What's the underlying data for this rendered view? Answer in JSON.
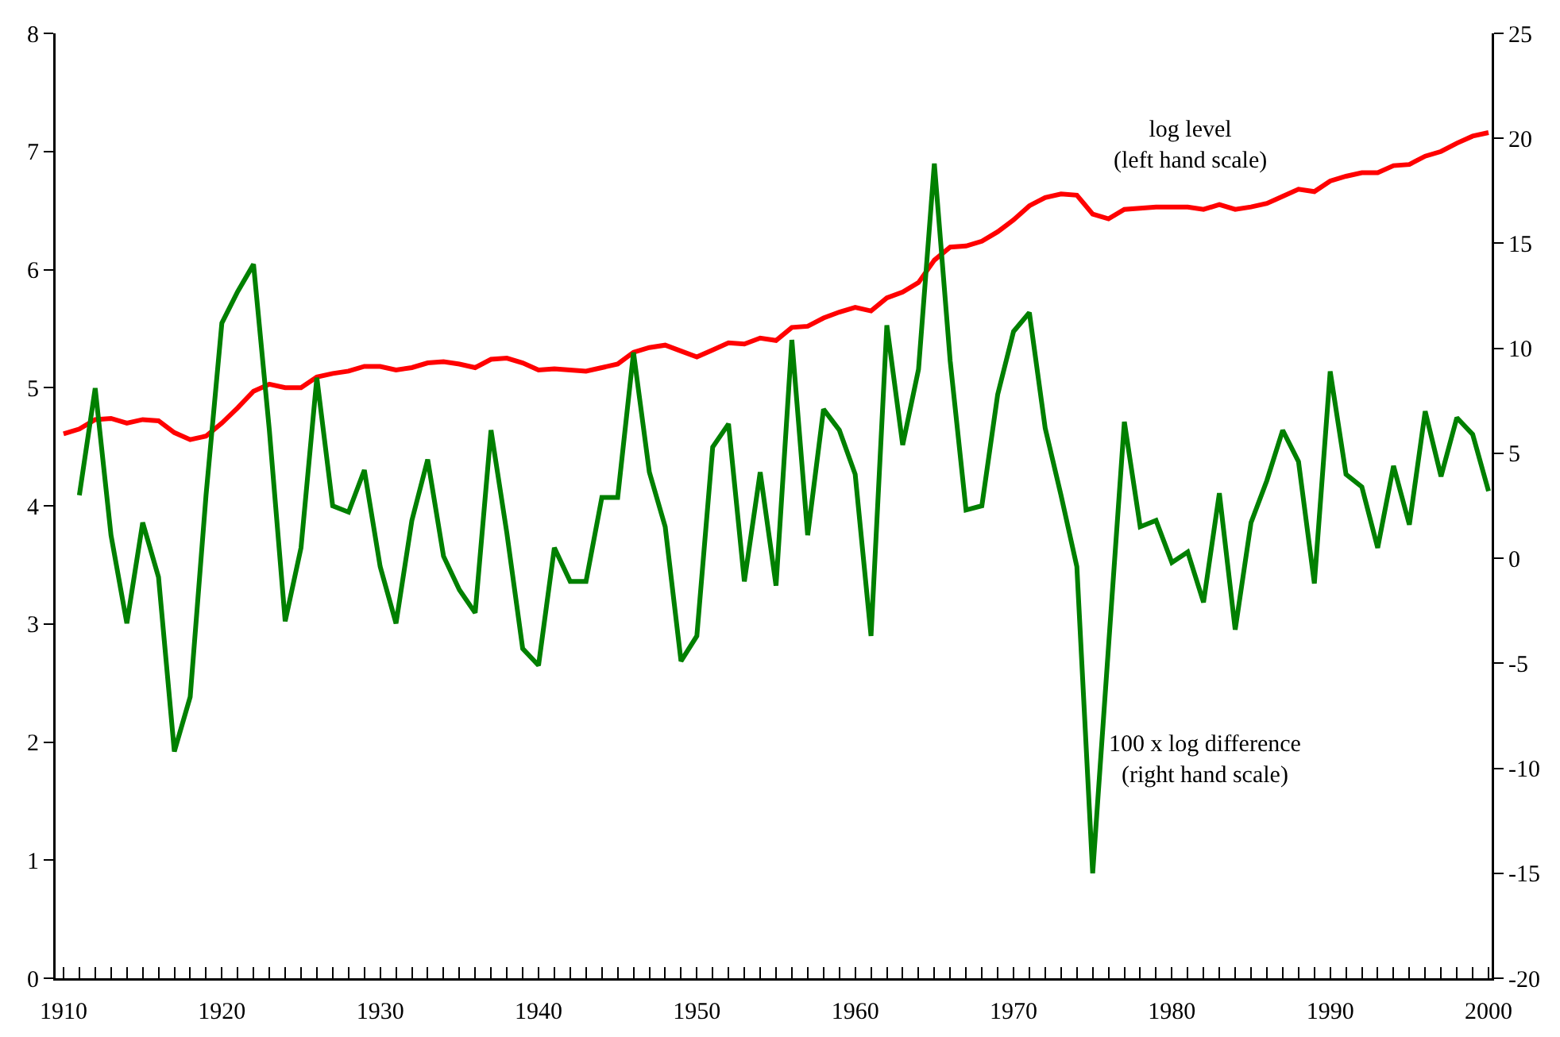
{
  "chart_data": {
    "type": "line",
    "x": [
      1910,
      1911,
      1912,
      1913,
      1914,
      1915,
      1916,
      1917,
      1918,
      1919,
      1920,
      1921,
      1922,
      1923,
      1924,
      1925,
      1926,
      1927,
      1928,
      1929,
      1930,
      1931,
      1932,
      1933,
      1934,
      1935,
      1936,
      1937,
      1938,
      1939,
      1940,
      1941,
      1942,
      1943,
      1944,
      1945,
      1946,
      1947,
      1948,
      1949,
      1950,
      1951,
      1952,
      1953,
      1954,
      1955,
      1956,
      1957,
      1958,
      1959,
      1960,
      1961,
      1962,
      1963,
      1964,
      1965,
      1966,
      1967,
      1968,
      1969,
      1970,
      1971,
      1972,
      1973,
      1974,
      1975,
      1976,
      1977,
      1978,
      1979,
      1980,
      1981,
      1982,
      1983,
      1984,
      1985,
      1986,
      1987,
      1988,
      1989,
      1990,
      1991,
      1992,
      1993,
      1994,
      1995,
      1996,
      1997,
      1998,
      1999,
      2000
    ],
    "series": [
      {
        "color": "#ff0000",
        "values": [
          4.61,
          4.65,
          4.73,
          4.74,
          4.7,
          4.73,
          4.72,
          4.62,
          4.56,
          4.59,
          4.7,
          4.83,
          4.97,
          5.03,
          5.0,
          5.0,
          5.09,
          5.12,
          5.14,
          5.18,
          5.18,
          5.15,
          5.17,
          5.21,
          5.22,
          5.2,
          5.17,
          5.24,
          5.25,
          5.21,
          5.15,
          5.16,
          5.15,
          5.14,
          5.17,
          5.2,
          5.3,
          5.34,
          5.36,
          5.31,
          5.26,
          5.32,
          5.38,
          5.37,
          5.42,
          5.4,
          5.51,
          5.52,
          5.59,
          5.64,
          5.68,
          5.65,
          5.76,
          5.81,
          5.89,
          6.08,
          6.19,
          6.2,
          6.24,
          6.32,
          6.42,
          6.54,
          6.61,
          6.64,
          6.63,
          6.47,
          6.43,
          6.51,
          6.52,
          6.53,
          6.53,
          6.53,
          6.51,
          6.55,
          6.51,
          6.53,
          6.56,
          6.62,
          6.68,
          6.66,
          6.75,
          6.79,
          6.82,
          6.82,
          6.88,
          6.89,
          6.96,
          7.0,
          7.07,
          7.13,
          7.16
        ]
      },
      {
        "color": "#008000",
        "axis": "y2",
        "values": [
          null,
          3.0,
          8.1,
          1.1,
          -3.1,
          1.7,
          -0.9,
          -9.2,
          -6.6,
          3.0,
          11.2,
          12.7,
          14.0,
          6.1,
          -3.0,
          0.5,
          8.6,
          2.5,
          2.2,
          4.2,
          -0.4,
          -3.1,
          1.8,
          4.7,
          0.1,
          -1.5,
          -2.6,
          6.1,
          1.2,
          -4.3,
          -5.1,
          0.5,
          -1.1,
          -1.1,
          2.9,
          2.9,
          9.8,
          4.1,
          1.5,
          -4.9,
          -3.7,
          5.3,
          6.4,
          -1.1,
          4.1,
          -1.3,
          10.4,
          1.1,
          7.1,
          6.1,
          4.0,
          -3.7,
          11.1,
          5.4,
          9.0,
          18.8,
          9.4,
          2.3,
          2.5,
          7.8,
          10.8,
          11.7,
          6.2,
          3.0,
          -0.4,
          -15.0,
          -4.2,
          6.5,
          1.5,
          1.8,
          -0.2,
          0.3,
          -2.1,
          3.1,
          -3.4,
          1.7,
          3.7,
          6.1,
          4.6,
          -1.2,
          8.9,
          4.0,
          3.4,
          0.5,
          4.4,
          1.6,
          7.0,
          3.9,
          6.7,
          5.9,
          3.2
        ]
      }
    ],
    "xlim": [
      1909.5,
      2000.2
    ],
    "xticks": [
      1910,
      {
        "value": 1911,
        "label": null
      },
      {
        "value": 1912,
        "label": null
      },
      {
        "value": 1913,
        "label": null
      },
      {
        "value": 1914,
        "label": null
      },
      {
        "value": 1915,
        "label": null
      },
      {
        "value": 1916,
        "label": null
      },
      {
        "value": 1917,
        "label": null
      },
      {
        "value": 1918,
        "label": null
      },
      {
        "value": 1919,
        "label": null
      },
      1920,
      {
        "value": 1921,
        "label": null
      },
      {
        "value": 1922,
        "label": null
      },
      {
        "value": 1923,
        "label": null
      },
      {
        "value": 1924,
        "label": null
      },
      {
        "value": 1925,
        "label": null
      },
      {
        "value": 1926,
        "label": null
      },
      {
        "value": 1927,
        "label": null
      },
      {
        "value": 1928,
        "label": null
      },
      {
        "value": 1929,
        "label": null
      },
      1930,
      {
        "value": 1931,
        "label": null
      },
      {
        "value": 1932,
        "label": null
      },
      {
        "value": 1933,
        "label": null
      },
      {
        "value": 1934,
        "label": null
      },
      {
        "value": 1935,
        "label": null
      },
      {
        "value": 1936,
        "label": null
      },
      {
        "value": 1937,
        "label": null
      },
      {
        "value": 1938,
        "label": null
      },
      {
        "value": 1939,
        "label": null
      },
      1940,
      {
        "value": 1941,
        "label": null
      },
      {
        "value": 1942,
        "label": null
      },
      {
        "value": 1943,
        "label": null
      },
      {
        "value": 1944,
        "label": null
      },
      {
        "value": 1945,
        "label": null
      },
      {
        "value": 1946,
        "label": null
      },
      {
        "value": 1947,
        "label": null
      },
      {
        "value": 1948,
        "label": null
      },
      {
        "value": 1949,
        "label": null
      },
      1950,
      {
        "value": 1951,
        "label": null
      },
      {
        "value": 1952,
        "label": null
      },
      {
        "value": 1953,
        "label": null
      },
      {
        "value": 1954,
        "label": null
      },
      {
        "value": 1955,
        "label": null
      },
      {
        "value": 1956,
        "label": null
      },
      {
        "value": 1957,
        "label": null
      },
      {
        "value": 1958,
        "label": null
      },
      {
        "value": 1959,
        "label": null
      },
      1960,
      {
        "value": 1961,
        "label": null
      },
      {
        "value": 1962,
        "label": null
      },
      {
        "value": 1963,
        "label": null
      },
      {
        "value": 1964,
        "label": null
      },
      {
        "value": 1965,
        "label": null
      },
      {
        "value": 1966,
        "label": null
      },
      {
        "value": 1967,
        "label": null
      },
      {
        "value": 1968,
        "label": null
      },
      {
        "value": 1969,
        "label": null
      },
      1970,
      {
        "value": 1971,
        "label": null
      },
      {
        "value": 1972,
        "label": null
      },
      {
        "value": 1973,
        "label": null
      },
      {
        "value": 1974,
        "label": null
      },
      {
        "value": 1975,
        "label": null
      },
      {
        "value": 1976,
        "label": null
      },
      {
        "value": 1977,
        "label": null
      },
      {
        "value": 1978,
        "label": null
      },
      {
        "value": 1979,
        "label": null
      },
      1980,
      {
        "value": 1981,
        "label": null
      },
      {
        "value": 1982,
        "label": null
      },
      {
        "value": 1983,
        "label": null
      },
      {
        "value": 1984,
        "label": null
      },
      {
        "value": 1985,
        "label": null
      },
      {
        "value": 1986,
        "label": null
      },
      {
        "value": 1987,
        "label": null
      },
      {
        "value": 1988,
        "label": null
      },
      {
        "value": 1989,
        "label": null
      },
      1990,
      {
        "value": 1991,
        "label": null
      },
      {
        "value": 1992,
        "label": null
      },
      {
        "value": 1993,
        "label": null
      },
      {
        "value": 1994,
        "label": null
      },
      {
        "value": 1995,
        "label": null
      },
      {
        "value": 1996,
        "label": null
      },
      {
        "value": 1997,
        "label": null
      },
      {
        "value": 1998,
        "label": null
      },
      {
        "value": 1999,
        "label": null
      },
      2000
    ],
    "ylim": [
      0,
      8
    ],
    "yticks": [
      0,
      1,
      2,
      3,
      4,
      5,
      6,
      7,
      8
    ],
    "y2lim": [
      -20,
      25
    ],
    "y2ticks": [
      -20,
      -15,
      -10,
      -5,
      0,
      5,
      10,
      15,
      20,
      25
    ],
    "annotations": [
      "log level\n(left hand scale)",
      "100 x log difference\n(right hand scale)"
    ],
    "grid": false,
    "marker": "none",
    "line_style": "solid"
  }
}
